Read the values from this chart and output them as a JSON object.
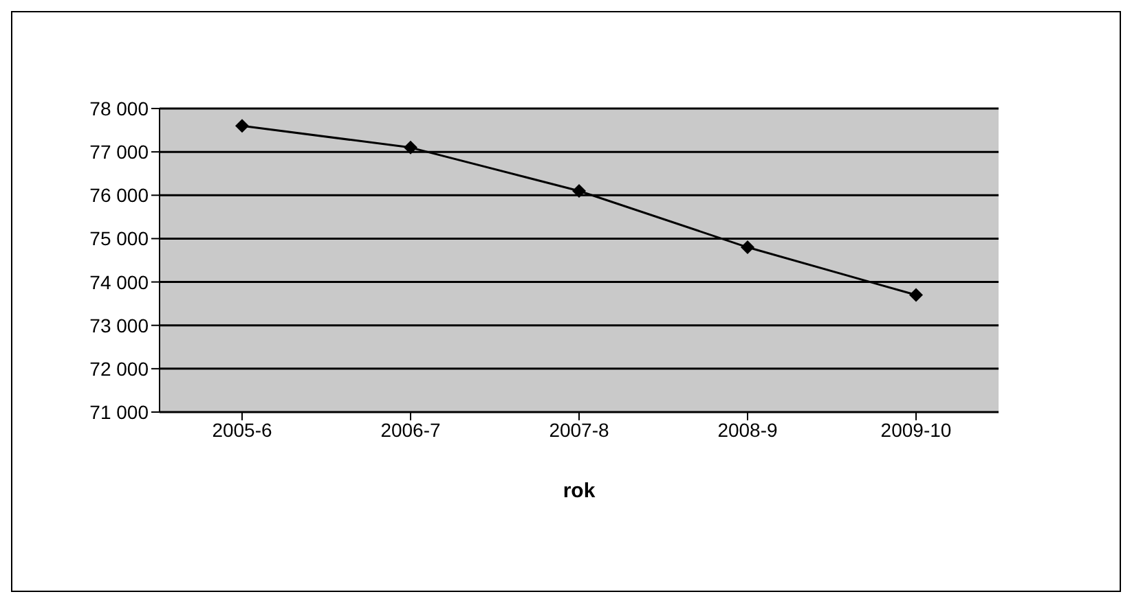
{
  "chart_data": {
    "type": "line",
    "xlabel": "rok",
    "categories": [
      "2005-6",
      "2006-7",
      "2007-8",
      "2008-9",
      "2009-10"
    ],
    "series": [
      {
        "color": "#000000",
        "values": [
          77600,
          77100,
          76100,
          74800,
          73700
        ]
      }
    ],
    "ylim": [
      71000,
      78000
    ],
    "yticks": [
      {
        "value": 71000,
        "label": "71 000"
      },
      {
        "value": 72000,
        "label": "72 000"
      },
      {
        "value": 73000,
        "label": "73 000"
      },
      {
        "value": 74000,
        "label": "74 000"
      },
      {
        "value": 75000,
        "label": "75 000"
      },
      {
        "value": 76000,
        "label": "76 000"
      },
      {
        "value": 77000,
        "label": "77 000"
      },
      {
        "value": 78000,
        "label": "78 000"
      }
    ],
    "grid": "y",
    "marker": "diamond",
    "line_style": "solid",
    "legend": false
  }
}
